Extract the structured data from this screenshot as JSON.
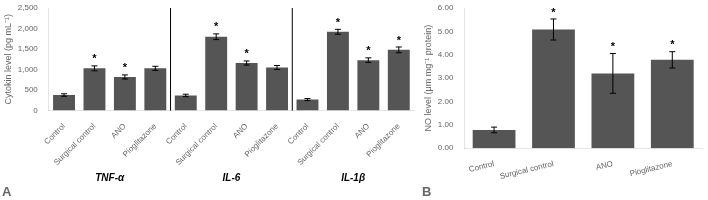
{
  "chart_data": [
    {
      "type": "bar",
      "title": "A",
      "ylabel": "Cytokin level (pg mL⁻¹)",
      "categories": [
        "Control",
        "Surgical control",
        "ANO",
        "Pioglitazone"
      ],
      "groups": [
        {
          "name": "TNF-α",
          "values": [
            380,
            1030,
            820,
            1030
          ],
          "errors": [
            30,
            60,
            50,
            50
          ],
          "annotations": [
            null,
            "*",
            "*",
            null
          ]
        },
        {
          "name": "IL-6",
          "values": [
            370,
            1800,
            1160,
            1050
          ],
          "errors": [
            30,
            70,
            50,
            50
          ],
          "annotations": [
            null,
            "*",
            "*",
            null
          ]
        },
        {
          "name": "IL-1β",
          "values": [
            270,
            1920,
            1230,
            1480
          ],
          "errors": [
            25,
            60,
            55,
            70
          ],
          "annotations": [
            null,
            "*",
            "*",
            "*"
          ]
        }
      ],
      "color": "#555555",
      "ylim": [
        0,
        2500
      ],
      "yticks": [
        0,
        500,
        {
          "value": 1000,
          "label": "1,000"
        },
        {
          "value": 1500,
          "label": "1,500"
        },
        {
          "value": 2000,
          "label": "2,000"
        },
        {
          "value": 2500,
          "label": "2,500"
        }
      ],
      "grid": false
    },
    {
      "type": "bar",
      "title": "B",
      "ylabel": "NO level (μm mg⁻¹ protein)",
      "categories": [
        "Control",
        "Surgical control",
        "ANO",
        "Pioglitazone"
      ],
      "values": [
        0.78,
        5.08,
        3.2,
        3.78
      ],
      "errors": [
        0.12,
        0.45,
        0.85,
        0.35
      ],
      "annotations": [
        null,
        "*",
        "*",
        "*"
      ],
      "color": "#555555",
      "ylim": [
        0,
        6.0
      ],
      "yticks": [
        {
          "value": 0,
          "label": "0.00"
        },
        {
          "value": 1,
          "label": "1.00"
        },
        {
          "value": 2,
          "label": "2.00"
        },
        {
          "value": 3,
          "label": "3.00"
        },
        {
          "value": 4,
          "label": "4.00"
        },
        {
          "value": 5,
          "label": "5.00"
        },
        {
          "value": 6,
          "label": "6.00"
        }
      ],
      "grid": false
    }
  ]
}
